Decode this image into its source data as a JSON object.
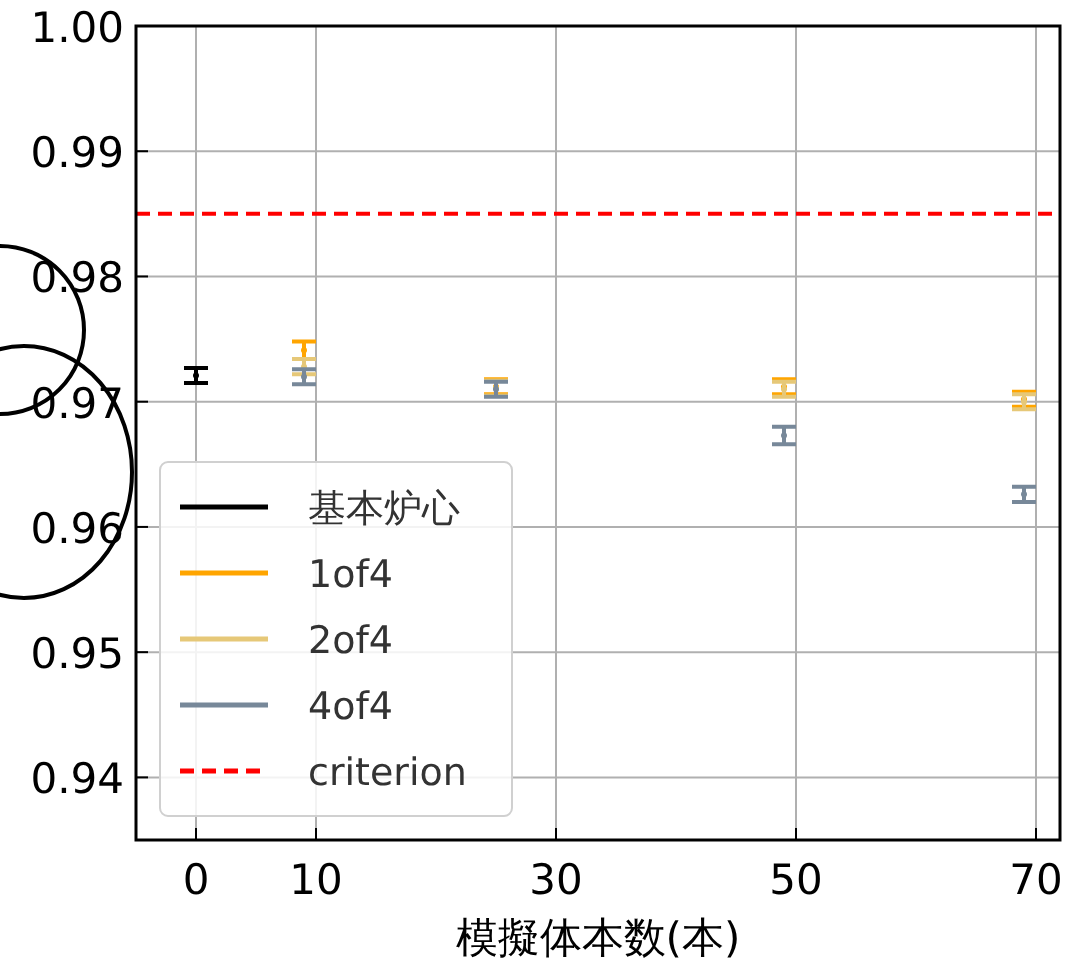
{
  "chart_data": {
    "type": "scatter",
    "xlabel": "模擬体本数(本)",
    "xlim": [
      -5,
      72
    ],
    "xticks": [
      0,
      10,
      30,
      50,
      70
    ],
    "ylim": [
      0.935,
      1.0
    ],
    "yticks": [
      {
        "value": 0.94,
        "label": "0.94"
      },
      {
        "value": 0.95,
        "label": "0.95"
      },
      {
        "value": 0.96,
        "label": "0.96"
      },
      {
        "value": 0.97,
        "label": "0.97"
      },
      {
        "value": 0.98,
        "label": "0.98"
      },
      {
        "value": 0.99,
        "label": "0.99"
      },
      {
        "value": 1.0,
        "label": "1.00"
      }
    ],
    "grid": true,
    "legend": "bottom left",
    "series": [
      {
        "name": "基本炉心",
        "color": "#000000",
        "x": [
          0
        ],
        "values": [
          0.9721
        ],
        "errors": [
          0.0006
        ]
      },
      {
        "name": "1of4",
        "color": "#ffa500",
        "x": [
          9,
          25,
          49,
          69
        ],
        "values": [
          0.9741,
          0.9712,
          0.9712,
          0.9702
        ],
        "errors": [
          0.0007,
          0.0006,
          0.0006,
          0.0006
        ]
      },
      {
        "name": "2of4",
        "color": "#e6c878",
        "x": [
          9,
          25,
          49,
          69
        ],
        "values": [
          0.9728,
          0.9711,
          0.971,
          0.97
        ],
        "errors": [
          0.0006,
          0.0006,
          0.0006,
          0.0006
        ]
      },
      {
        "name": "4of4",
        "color": "#778899",
        "x": [
          9,
          25,
          49,
          69
        ],
        "values": [
          0.972,
          0.971,
          0.9673,
          0.9626
        ],
        "errors": [
          0.0006,
          0.0006,
          0.0007,
          0.0006
        ]
      }
    ],
    "ref_lines": [
      {
        "axis": "y",
        "value": 0.985,
        "label": "criterion",
        "color": "#ff0000",
        "line_style": "dashed"
      }
    ]
  }
}
